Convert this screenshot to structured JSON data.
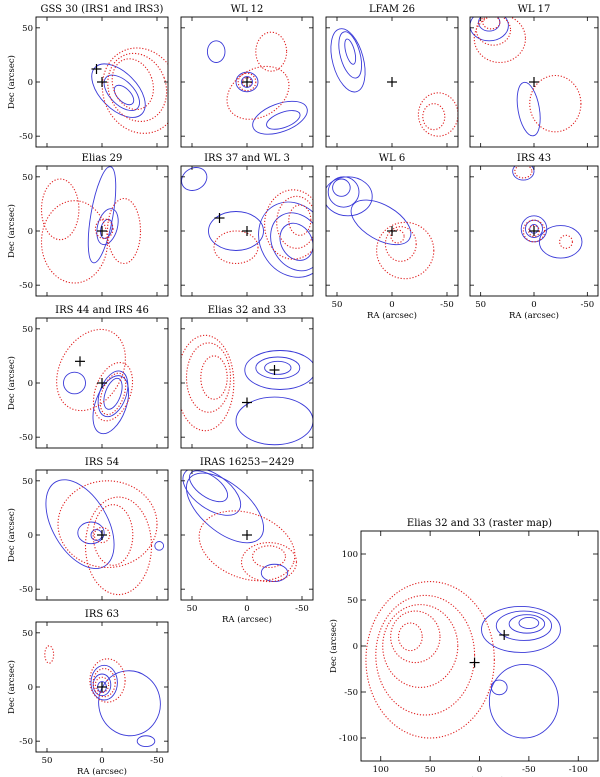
{
  "figure": {
    "colors": {
      "blue": "#3a3ad8",
      "red": "#e02020",
      "axis": "#000000"
    },
    "small_axes": {
      "x_range": [
        60,
        -60
      ],
      "y_range": [
        -60,
        60
      ],
      "x_ticks": [
        50,
        0,
        -50
      ],
      "y_ticks": [
        50,
        0,
        -50
      ],
      "x_label": "RA (arcsec)",
      "y_label": "Dec (arcsec)"
    },
    "raster_axes": {
      "x_range": [
        120,
        -120
      ],
      "y_range": [
        -125,
        125
      ],
      "x_ticks": [
        100,
        50,
        0,
        -50,
        -100
      ],
      "y_ticks": [
        100,
        50,
        0,
        -50,
        -100
      ],
      "x_label": "RA (arcsec)",
      "y_label": "Dec (arcsec)"
    }
  },
  "chart_data": [
    {
      "id": "gss30",
      "type": "contour",
      "title": "GSS 30 (IRS1 and IRS3)",
      "sources": [
        [
          5,
          12
        ],
        [
          0,
          0
        ]
      ],
      "blue": [
        {
          "c": [
            -20,
            -12
          ],
          "rx": 11,
          "ry": 6,
          "rot": -45
        },
        {
          "c": [
            -18,
            -10
          ],
          "rx": 20,
          "ry": 11,
          "rot": -45
        },
        {
          "c": [
            -15,
            -8
          ],
          "rx": 30,
          "ry": 17,
          "rot": -45
        }
      ],
      "red": [
        {
          "c": [
            -28,
            -2
          ],
          "rx": 18,
          "ry": 24,
          "rot": 20
        },
        {
          "c": [
            -32,
            -5
          ],
          "rx": 26,
          "ry": 32,
          "rot": 20
        },
        {
          "c": [
            -35,
            -8
          ],
          "rx": 34,
          "ry": 40,
          "rot": 20
        }
      ]
    },
    {
      "id": "wl12",
      "type": "contour",
      "title": "WL 12",
      "sources": [
        [
          0,
          0
        ]
      ],
      "blue": [
        {
          "c": [
            0,
            0
          ],
          "rx": 5,
          "ry": 5,
          "rot": 0
        },
        {
          "c": [
            0,
            0
          ],
          "rx": 10,
          "ry": 9,
          "rot": 0
        },
        {
          "c": [
            -33,
            -35
          ],
          "rx": 16,
          "ry": 7,
          "rot": 20
        },
        {
          "c": [
            -30,
            -33
          ],
          "rx": 26,
          "ry": 13,
          "rot": 20
        },
        {
          "c": [
            28,
            28
          ],
          "rx": 8,
          "ry": 10,
          "rot": 0
        }
      ],
      "red": [
        {
          "c": [
            0,
            0
          ],
          "rx": 4,
          "ry": 4,
          "rot": 0
        },
        {
          "c": [
            0,
            0
          ],
          "rx": 8,
          "ry": 8,
          "rot": 0
        },
        {
          "c": [
            -22,
            28
          ],
          "rx": 14,
          "ry": 18,
          "rot": 0
        },
        {
          "c": [
            -10,
            -10
          ],
          "rx": 30,
          "ry": 22,
          "rot": 30
        }
      ]
    },
    {
      "id": "lfam26",
      "type": "contour",
      "title": "LFAM 26",
      "sources": [
        [
          0,
          0
        ]
      ],
      "blue": [
        {
          "c": [
            38,
            28
          ],
          "rx": 4,
          "ry": 12,
          "rot": 15
        },
        {
          "c": [
            38,
            25
          ],
          "rx": 9,
          "ry": 22,
          "rot": 15
        },
        {
          "c": [
            40,
            20
          ],
          "rx": 14,
          "ry": 30,
          "rot": 15
        }
      ],
      "red": [
        {
          "c": [
            -38,
            -32
          ],
          "rx": 10,
          "ry": 12,
          "rot": 0
        },
        {
          "c": [
            -42,
            -30
          ],
          "rx": 18,
          "ry": 20,
          "rot": 0
        }
      ]
    },
    {
      "id": "wl17",
      "type": "contour",
      "title": "WL 17",
      "sources": [
        [
          0,
          0
        ]
      ],
      "blue": [
        {
          "c": [
            42,
            55
          ],
          "rx": 10,
          "ry": 8,
          "rot": 0
        },
        {
          "c": [
            42,
            52
          ],
          "rx": 18,
          "ry": 14,
          "rot": 0
        },
        {
          "c": [
            5,
            -25
          ],
          "rx": 10,
          "ry": 25,
          "rot": 10
        }
      ],
      "red": [
        {
          "c": [
            40,
            55
          ],
          "rx": 8,
          "ry": 6,
          "rot": 0
        },
        {
          "c": [
            38,
            48
          ],
          "rx": 16,
          "ry": 14,
          "rot": 0
        },
        {
          "c": [
            32,
            40
          ],
          "rx": 24,
          "ry": 22,
          "rot": 0
        },
        {
          "c": [
            -20,
            -20
          ],
          "rx": 24,
          "ry": 26,
          "rot": 0
        }
      ]
    },
    {
      "id": "elias29",
      "type": "contour",
      "title": "Elias 29",
      "sources": [
        [
          0,
          0
        ]
      ],
      "blue": [
        {
          "c": [
            -4,
            2
          ],
          "rx": 5,
          "ry": 9,
          "rot": -15
        },
        {
          "c": [
            -5,
            4
          ],
          "rx": 9,
          "ry": 17,
          "rot": -15
        },
        {
          "c": [
            0,
            15
          ],
          "rx": 10,
          "ry": 45,
          "rot": -10
        }
      ],
      "red": [
        {
          "c": [
            -2,
            2
          ],
          "rx": 8,
          "ry": 9,
          "rot": 0
        },
        {
          "c": [
            -20,
            0
          ],
          "rx": 15,
          "ry": 30,
          "rot": 0
        },
        {
          "c": [
            38,
            20
          ],
          "rx": 17,
          "ry": 28,
          "rot": 0
        },
        {
          "c": [
            25,
            -10
          ],
          "rx": 30,
          "ry": 38,
          "rot": 0
        }
      ]
    },
    {
      "id": "irs37",
      "type": "contour",
      "title": "IRS 37 and WL 3",
      "sources": [
        [
          25,
          12
        ],
        [
          0,
          0
        ]
      ],
      "blue": [
        {
          "c": [
            48,
            48
          ],
          "rx": 12,
          "ry": 10,
          "rot": 30
        },
        {
          "c": [
            -45,
            -10
          ],
          "rx": 14,
          "ry": 18,
          "rot": 30
        },
        {
          "c": [
            -45,
            -10
          ],
          "rx": 22,
          "ry": 28,
          "rot": 30
        },
        {
          "c": [
            -42,
            -8
          ],
          "rx": 30,
          "ry": 36,
          "rot": 30
        },
        {
          "c": [
            10,
            0
          ],
          "rx": 25,
          "ry": 18,
          "rot": 0
        }
      ],
      "red": [
        {
          "c": [
            -48,
            10
          ],
          "rx": 10,
          "ry": 14,
          "rot": 0
        },
        {
          "c": [
            -45,
            8
          ],
          "rx": 18,
          "ry": 24,
          "rot": 0
        },
        {
          "c": [
            -42,
            6
          ],
          "rx": 26,
          "ry": 32,
          "rot": 0
        },
        {
          "c": [
            10,
            -15
          ],
          "rx": 20,
          "ry": 15,
          "rot": 0
        }
      ]
    },
    {
      "id": "wl6",
      "type": "contour",
      "title": "WL 6",
      "sources": [
        [
          0,
          0
        ]
      ],
      "blue": [
        {
          "c": [
            46,
            40
          ],
          "rx": 8,
          "ry": 8,
          "rot": 0
        },
        {
          "c": [
            44,
            36
          ],
          "rx": 14,
          "ry": 14,
          "rot": 0
        },
        {
          "c": [
            40,
            32
          ],
          "rx": 22,
          "ry": 18,
          "rot": 0
        },
        {
          "c": [
            10,
            8
          ],
          "rx": 30,
          "ry": 16,
          "rot": -30
        }
      ],
      "red": [
        {
          "c": [
            -5,
            -5
          ],
          "rx": 6,
          "ry": 6,
          "rot": 0
        },
        {
          "c": [
            -8,
            -12
          ],
          "rx": 14,
          "ry": 16,
          "rot": 0
        },
        {
          "c": [
            -12,
            -18
          ],
          "rx": 26,
          "ry": 26,
          "rot": 0
        }
      ]
    },
    {
      "id": "irs43",
      "type": "contour",
      "title": "IRS 43",
      "sources": [
        [
          0,
          0
        ]
      ],
      "blue": [
        {
          "c": [
            0,
            2
          ],
          "rx": 4,
          "ry": 4,
          "rot": 0
        },
        {
          "c": [
            0,
            2
          ],
          "rx": 8,
          "ry": 8,
          "rot": 0
        },
        {
          "c": [
            0,
            2
          ],
          "rx": 12,
          "ry": 12,
          "rot": 0
        },
        {
          "c": [
            -25,
            -10
          ],
          "rx": 20,
          "ry": 15,
          "rot": 0
        },
        {
          "c": [
            10,
            55
          ],
          "rx": 10,
          "ry": 8,
          "rot": 0
        }
      ],
      "red": [
        {
          "c": [
            0,
            0
          ],
          "rx": 5,
          "ry": 5,
          "rot": 0
        },
        {
          "c": [
            0,
            0
          ],
          "rx": 10,
          "ry": 10,
          "rot": 0
        },
        {
          "c": [
            10,
            55
          ],
          "rx": 8,
          "ry": 6,
          "rot": 0
        },
        {
          "c": [
            -30,
            -10
          ],
          "rx": 6,
          "ry": 6,
          "rot": 0
        }
      ]
    },
    {
      "id": "irs44",
      "type": "contour",
      "title": "IRS 44 and IRS 46",
      "sources": [
        [
          20,
          20
        ],
        [
          0,
          0
        ]
      ],
      "blue": [
        {
          "c": [
            -10,
            -10
          ],
          "rx": 7,
          "ry": 15,
          "rot": -20
        },
        {
          "c": [
            -10,
            -10
          ],
          "rx": 12,
          "ry": 22,
          "rot": -20
        },
        {
          "c": [
            25,
            0
          ],
          "rx": 10,
          "ry": 10,
          "rot": 0
        },
        {
          "c": [
            -8,
            -20
          ],
          "rx": 14,
          "ry": 28,
          "rot": -20
        }
      ],
      "red": [
        {
          "c": [
            -10,
            -10
          ],
          "rx": 10,
          "ry": 20,
          "rot": -20
        },
        {
          "c": [
            -10,
            -8
          ],
          "rx": 16,
          "ry": 28,
          "rot": -20
        },
        {
          "c": [
            10,
            12
          ],
          "rx": 28,
          "ry": 40,
          "rot": -30
        }
      ]
    },
    {
      "id": "elias32",
      "type": "contour",
      "title": "Elias 32 and 33",
      "sources": [
        [
          -25,
          12
        ],
        [
          0,
          -18
        ]
      ],
      "blue": [
        {
          "c": [
            -28,
            14
          ],
          "rx": 12,
          "ry": 6,
          "rot": 0
        },
        {
          "c": [
            -28,
            14
          ],
          "rx": 20,
          "ry": 10,
          "rot": 0
        },
        {
          "c": [
            -30,
            12
          ],
          "rx": 32,
          "ry": 18,
          "rot": 0
        },
        {
          "c": [
            -25,
            -35
          ],
          "rx": 35,
          "ry": 22,
          "rot": 0
        }
      ],
      "red": [
        {
          "c": [
            30,
            5
          ],
          "rx": 12,
          "ry": 20,
          "rot": 0
        },
        {
          "c": [
            35,
            5
          ],
          "rx": 20,
          "ry": 32,
          "rot": 0
        },
        {
          "c": [
            38,
            0
          ],
          "rx": 26,
          "ry": 44,
          "rot": 0
        }
      ]
    },
    {
      "id": "irs54",
      "type": "contour",
      "title": "IRS 54",
      "sources": [
        [
          0,
          0
        ]
      ],
      "blue": [
        {
          "c": [
            5,
            0
          ],
          "rx": 5,
          "ry": 5,
          "rot": 0
        },
        {
          "c": [
            10,
            2
          ],
          "rx": 12,
          "ry": 10,
          "rot": 0
        },
        {
          "c": [
            20,
            10
          ],
          "rx": 25,
          "ry": 45,
          "rot": 30
        },
        {
          "c": [
            -52,
            -10
          ],
          "rx": 4,
          "ry": 4,
          "rot": 0
        }
      ],
      "red": [
        {
          "c": [
            0,
            0
          ],
          "rx": 7,
          "ry": 7,
          "rot": 0
        },
        {
          "c": [
            -10,
            0
          ],
          "rx": 18,
          "ry": 28,
          "rot": 0
        },
        {
          "c": [
            -15,
            -10
          ],
          "rx": 30,
          "ry": 45,
          "rot": 0
        },
        {
          "c": [
            -5,
            10
          ],
          "rx": 45,
          "ry": 40,
          "rot": 0
        }
      ]
    },
    {
      "id": "iras16253",
      "type": "contour",
      "title": "IRAS 16253−2429",
      "sources": [
        [
          0,
          0
        ]
      ],
      "blue": [
        {
          "c": [
            35,
            45
          ],
          "rx": 20,
          "ry": 10,
          "rot": -35
        },
        {
          "c": [
            32,
            40
          ],
          "rx": 30,
          "ry": 16,
          "rot": -35
        },
        {
          "c": [
            20,
            25
          ],
          "rx": 42,
          "ry": 22,
          "rot": -40
        },
        {
          "c": [
            -25,
            -35
          ],
          "rx": 12,
          "ry": 8,
          "rot": 0
        }
      ],
      "red": [
        {
          "c": [
            -20,
            -20
          ],
          "rx": 15,
          "ry": 10,
          "rot": 0
        },
        {
          "c": [
            -20,
            -25
          ],
          "rx": 25,
          "ry": 18,
          "rot": 0
        },
        {
          "c": [
            0,
            -10
          ],
          "rx": 45,
          "ry": 30,
          "rot": -20
        }
      ]
    },
    {
      "id": "irs63",
      "type": "contour",
      "title": "IRS 63",
      "sources": [
        [
          0,
          0
        ]
      ],
      "blue": [
        {
          "c": [
            0,
            0
          ],
          "rx": 4,
          "ry": 5,
          "rot": 0
        },
        {
          "c": [
            0,
            2
          ],
          "rx": 8,
          "ry": 10,
          "rot": 0
        },
        {
          "c": [
            -2,
            4
          ],
          "rx": 12,
          "ry": 16,
          "rot": 0
        },
        {
          "c": [
            -25,
            -15
          ],
          "rx": 28,
          "ry": 30,
          "rot": 10
        },
        {
          "c": [
            -40,
            -50
          ],
          "rx": 8,
          "ry": 5,
          "rot": 0
        }
      ],
      "red": [
        {
          "c": [
            0,
            2
          ],
          "rx": 6,
          "ry": 7,
          "rot": 0
        },
        {
          "c": [
            -2,
            4
          ],
          "rx": 10,
          "ry": 13,
          "rot": 0
        },
        {
          "c": [
            -5,
            6
          ],
          "rx": 16,
          "ry": 20,
          "rot": 0
        },
        {
          "c": [
            48,
            30
          ],
          "rx": 4,
          "ry": 8,
          "rot": 0
        }
      ]
    },
    {
      "id": "elias32raster",
      "type": "contour",
      "title": "Elias 32 and 33 (raster map)",
      "sources": [
        [
          -25,
          12
        ],
        [
          5,
          -18
        ]
      ],
      "blue": [
        {
          "c": [
            -50,
            25
          ],
          "rx": 10,
          "ry": 6,
          "rot": 0
        },
        {
          "c": [
            -48,
            24
          ],
          "rx": 18,
          "ry": 10,
          "rot": 0
        },
        {
          "c": [
            -45,
            22
          ],
          "rx": 28,
          "ry": 16,
          "rot": 0
        },
        {
          "c": [
            -42,
            18
          ],
          "rx": 40,
          "ry": 25,
          "rot": 0
        },
        {
          "c": [
            -45,
            -60
          ],
          "rx": 35,
          "ry": 40,
          "rot": 0
        },
        {
          "c": [
            -20,
            -45
          ],
          "rx": 8,
          "ry": 8,
          "rot": 0
        }
      ],
      "red": [
        {
          "c": [
            70,
            10
          ],
          "rx": 12,
          "ry": 15,
          "rot": 0
        },
        {
          "c": [
            65,
            10
          ],
          "rx": 25,
          "ry": 28,
          "rot": 0
        },
        {
          "c": [
            60,
            0
          ],
          "rx": 38,
          "ry": 45,
          "rot": 0
        },
        {
          "c": [
            55,
            -10
          ],
          "rx": 50,
          "ry": 65,
          "rot": 0
        },
        {
          "c": [
            50,
            -15
          ],
          "rx": 65,
          "ry": 85,
          "rot": 0
        }
      ]
    }
  ]
}
